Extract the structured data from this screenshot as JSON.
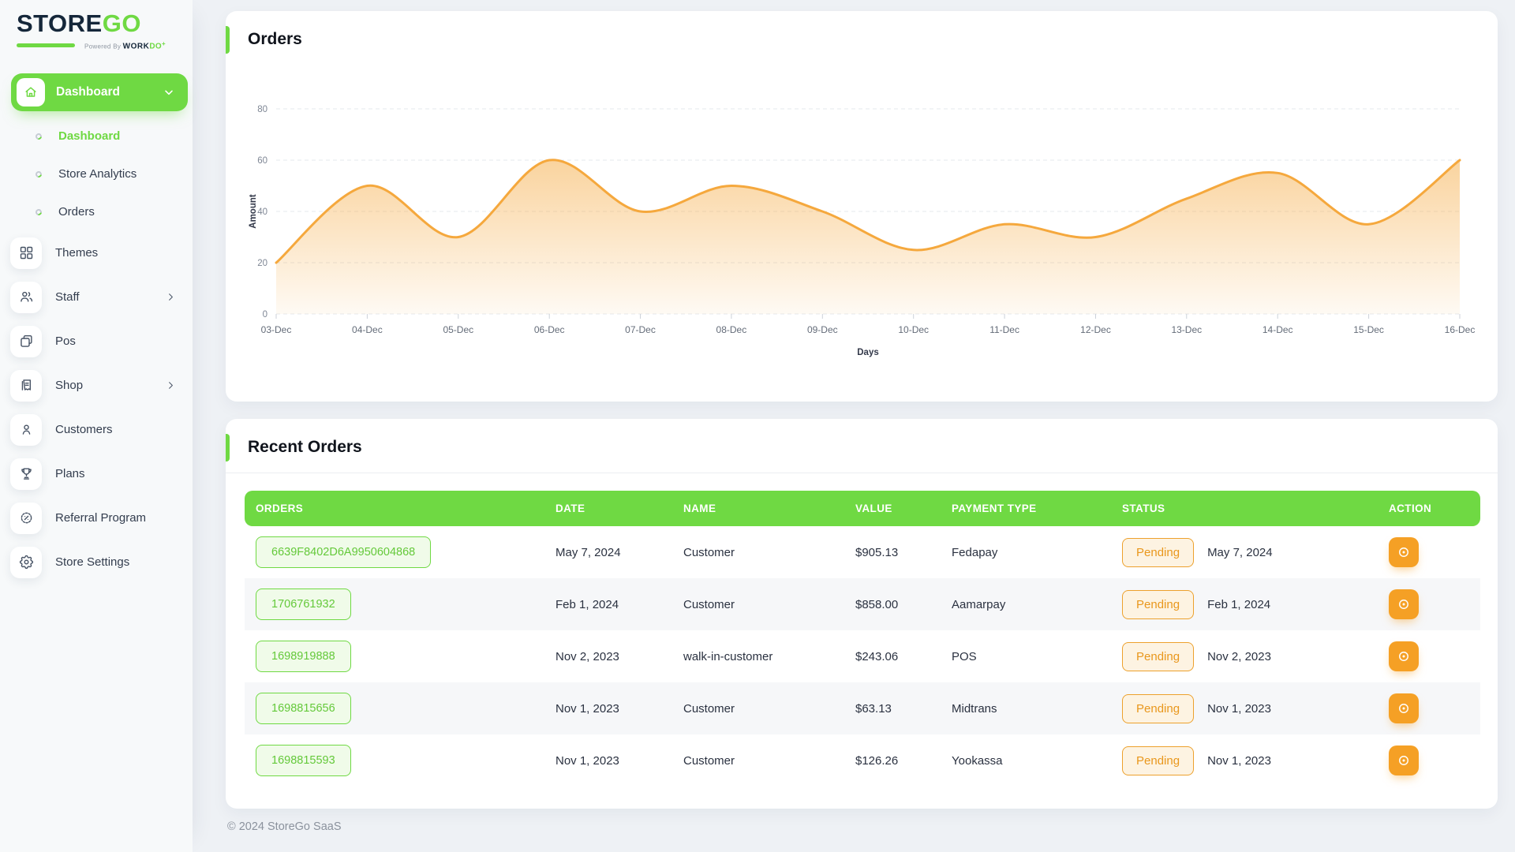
{
  "brand": {
    "name_primary": "STORE",
    "name_secondary": "GO",
    "powered_prefix": "Powered By",
    "powered_word": "WORK",
    "powered_word_accent": "DO",
    "powered_plus": "+"
  },
  "sidebar": {
    "group_label": "Dashboard",
    "sub_items": [
      {
        "label": "Dashboard",
        "active": true
      },
      {
        "label": "Store Analytics",
        "active": false
      },
      {
        "label": "Orders",
        "active": false
      }
    ],
    "items": [
      {
        "label": "Themes",
        "icon": "themes-icon",
        "chevron": false
      },
      {
        "label": "Staff",
        "icon": "staff-icon",
        "chevron": true
      },
      {
        "label": "Pos",
        "icon": "pos-icon",
        "chevron": false
      },
      {
        "label": "Shop",
        "icon": "shop-icon",
        "chevron": true
      },
      {
        "label": "Customers",
        "icon": "customers-icon",
        "chevron": false
      },
      {
        "label": "Plans",
        "icon": "plans-icon",
        "chevron": false
      },
      {
        "label": "Referral Program",
        "icon": "referral-icon",
        "chevron": false
      },
      {
        "label": "Store Settings",
        "icon": "settings-icon",
        "chevron": false
      }
    ]
  },
  "orders_card": {
    "title": "Orders"
  },
  "chart_data": {
    "type": "area",
    "x": [
      "03-Dec",
      "04-Dec",
      "05-Dec",
      "06-Dec",
      "07-Dec",
      "08-Dec",
      "09-Dec",
      "10-Dec",
      "11-Dec",
      "12-Dec",
      "13-Dec",
      "14-Dec",
      "15-Dec",
      "16-Dec"
    ],
    "series": [
      {
        "name": "Orders",
        "values": [
          20,
          50,
          30,
          60,
          40,
          50,
          40,
          25,
          35,
          30,
          45,
          55,
          35,
          60
        ]
      }
    ],
    "xlabel": "Days",
    "ylabel": "Amount",
    "ylim": [
      0,
      80
    ],
    "yticks": [
      0,
      20,
      40,
      60,
      80
    ],
    "grid": true,
    "legend": "none",
    "line_color": "#f5a83d"
  },
  "recent_orders": {
    "title": "Recent Orders",
    "columns": [
      "ORDERS",
      "DATE",
      "NAME",
      "VALUE",
      "PAYMENT TYPE",
      "STATUS",
      "ACTION"
    ],
    "rows": [
      {
        "order_id": "6639F8402D6A9950604868",
        "date": "May 7, 2024",
        "name": "Customer",
        "value": "$905.13",
        "payment_type": "Fedapay",
        "status": "Pending",
        "status_date": "May 7, 2024"
      },
      {
        "order_id": "1706761932",
        "date": "Feb 1, 2024",
        "name": "Customer",
        "value": "$858.00",
        "payment_type": "Aamarpay",
        "status": "Pending",
        "status_date": "Feb 1, 2024"
      },
      {
        "order_id": "1698919888",
        "date": "Nov 2, 2023",
        "name": "walk-in-customer",
        "value": "$243.06",
        "payment_type": "POS",
        "status": "Pending",
        "status_date": "Nov 2, 2023"
      },
      {
        "order_id": "1698815656",
        "date": "Nov 1, 2023",
        "name": "Customer",
        "value": "$63.13",
        "payment_type": "Midtrans",
        "status": "Pending",
        "status_date": "Nov 1, 2023"
      },
      {
        "order_id": "1698815593",
        "date": "Nov 1, 2023",
        "name": "Customer",
        "value": "$126.26",
        "payment_type": "Yookassa",
        "status": "Pending",
        "status_date": "Nov 1, 2023"
      }
    ]
  },
  "footer": {
    "copyright": "© 2024 StoreGo SaaS"
  },
  "colors": {
    "green": "#6fd943",
    "orange": "#f59e0b",
    "chart_line": "#f5a83d",
    "navy": "#15273a"
  }
}
